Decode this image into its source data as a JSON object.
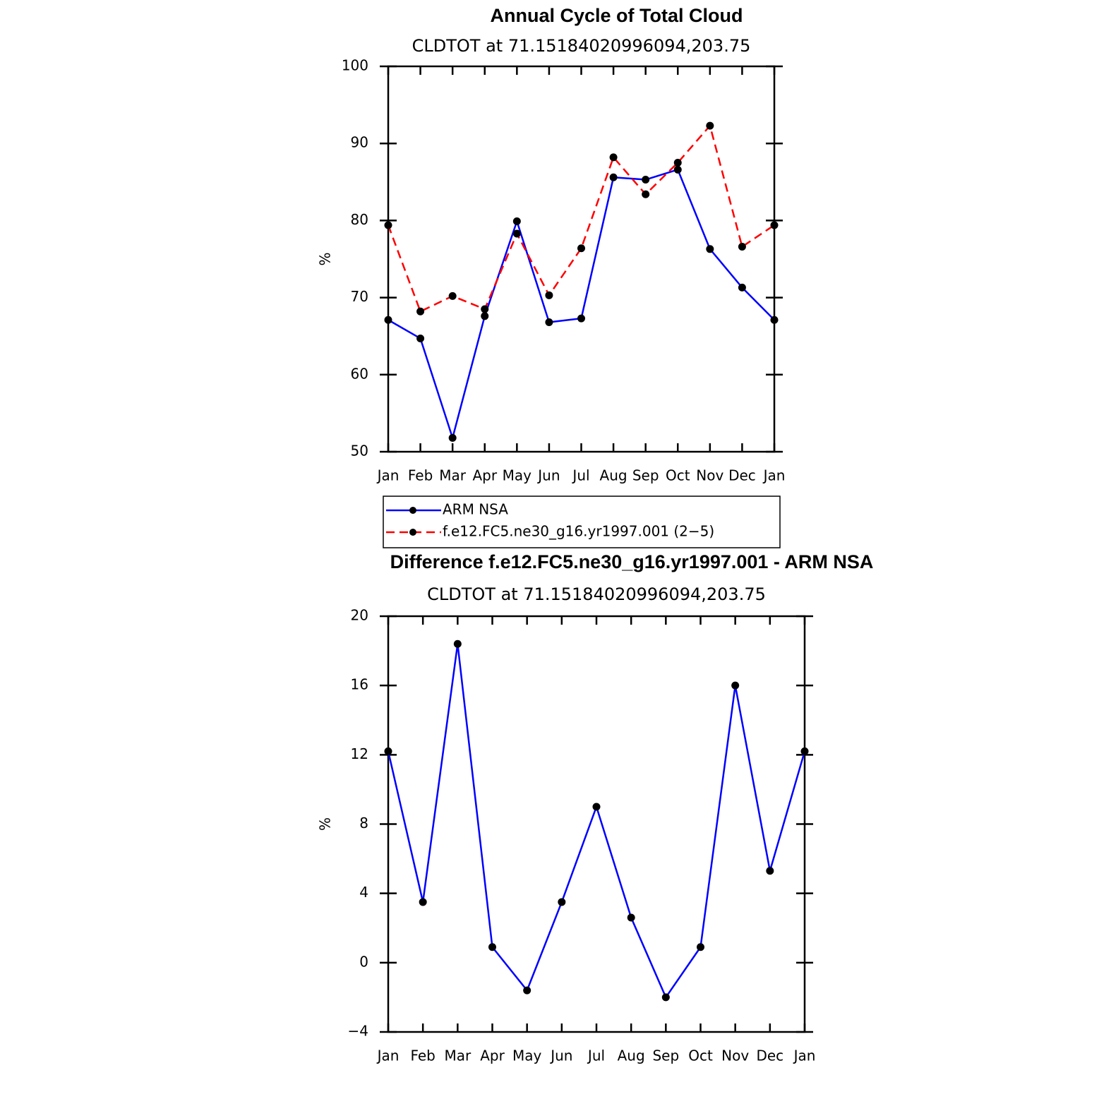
{
  "chart_data": [
    {
      "type": "line",
      "title": "Annual Cycle of Total Cloud",
      "subtitle": "CLDTOT at 71.15184020996094,203.75",
      "ylabel": "%",
      "categories": [
        "Jan",
        "Feb",
        "Mar",
        "Apr",
        "May",
        "Jun",
        "Jul",
        "Aug",
        "Sep",
        "Oct",
        "Nov",
        "Dec",
        "Jan"
      ],
      "series": [
        {
          "name": "ARM NSA",
          "color": "#0000ff",
          "dash": "solid",
          "values": [
            67.1,
            64.7,
            51.8,
            67.6,
            79.9,
            66.8,
            67.3,
            85.6,
            85.3,
            86.6,
            76.3,
            71.3,
            67.1
          ]
        },
        {
          "name": "f.e12.FC5.ne30_g16.yr1997.001 (2−5)",
          "color": "#ff0000",
          "dash": "dashed",
          "values": [
            79.4,
            68.2,
            70.2,
            68.5,
            78.3,
            70.3,
            76.4,
            88.2,
            83.4,
            87.5,
            92.3,
            76.6,
            79.4
          ]
        }
      ],
      "ylim": [
        50,
        100
      ],
      "yticks": [
        50,
        60,
        70,
        80,
        90,
        100
      ],
      "legend": "below"
    },
    {
      "type": "line",
      "title": "Difference f.e12.FC5.ne30_g16.yr1997.001 - ARM NSA",
      "subtitle": "CLDTOT at 71.15184020996094,203.75",
      "ylabel": "%",
      "categories": [
        "Jan",
        "Feb",
        "Mar",
        "Apr",
        "May",
        "Jun",
        "Jul",
        "Aug",
        "Sep",
        "Oct",
        "Nov",
        "Dec",
        "Jan"
      ],
      "series": [
        {
          "color": "#0000ff",
          "dash": "solid",
          "values": [
            12.2,
            3.5,
            18.4,
            0.9,
            -1.6,
            3.5,
            9.0,
            2.6,
            -2.0,
            0.9,
            16.0,
            5.3,
            12.2
          ]
        }
      ],
      "ylim": [
        -4,
        20
      ],
      "yticks": [
        {
          "value": -4,
          "label": "−4"
        },
        0,
        4,
        8,
        12,
        16,
        20
      ]
    }
  ]
}
